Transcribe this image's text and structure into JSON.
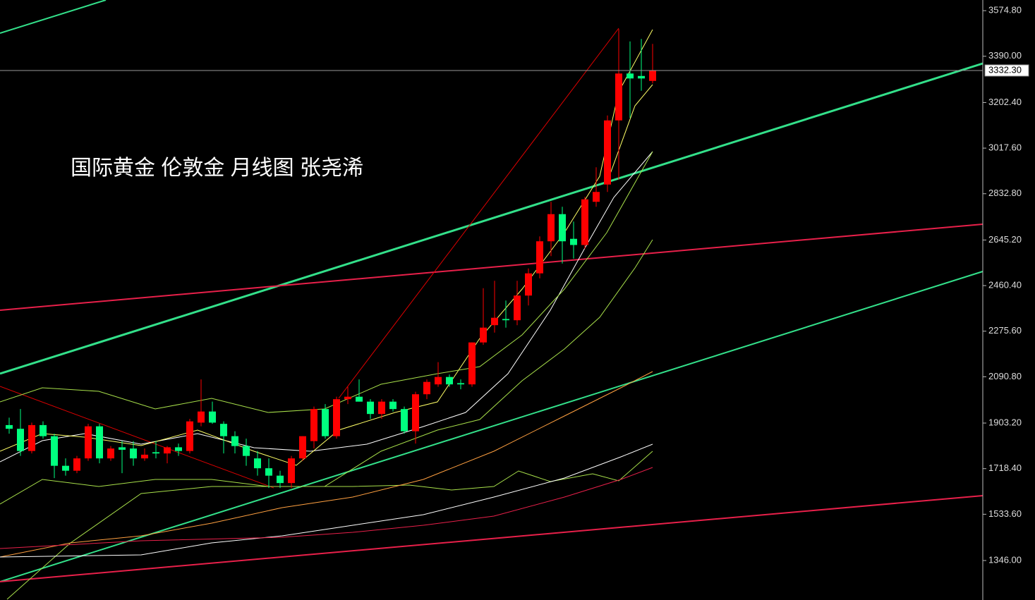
{
  "chart_data": {
    "type": "candlestick",
    "title": "国际黄金 伦敦金 月线图 张尧浠",
    "up_color": "#ff0000",
    "down_color": "#00ff7f",
    "open": [
      1895,
      1880,
      1790,
      1895,
      1850,
      1730,
      1710,
      1760,
      1890,
      1760,
      1805,
      1800,
      1760,
      1785,
      1780,
      1805,
      1790,
      1905,
      1950,
      1900,
      1850,
      1810,
      1760,
      1720,
      1690,
      1660,
      1760,
      1830,
      1960,
      1850,
      2000,
      2010,
      1990,
      1940,
      1990,
      1960,
      1870,
      2020,
      2060,
      2090,
      2065,
      2060,
      2230,
      2300,
      2325,
      2320,
      2420,
      2510,
      2640,
      2750,
      2650,
      2625,
      2800,
      2870,
      3130,
      3320,
      3310,
      3290
    ],
    "high": [
      1925,
      1960,
      1905,
      1910,
      1860,
      1760,
      1770,
      1900,
      1900,
      1810,
      1830,
      1830,
      1800,
      1830,
      1810,
      1820,
      1920,
      2080,
      1990,
      1910,
      1870,
      1840,
      1790,
      1760,
      1710,
      1770,
      1850,
      1970,
      1980,
      2010,
      2050,
      2080,
      2000,
      2000,
      2000,
      1970,
      2030,
      2080,
      2150,
      2100,
      2080,
      2230,
      2450,
      2480,
      2400,
      2480,
      2530,
      2660,
      2800,
      2780,
      2720,
      2820,
      2940,
      3150,
      3500,
      3450,
      3460,
      3440
    ],
    "low": [
      1860,
      1770,
      1780,
      1840,
      1680,
      1690,
      1700,
      1750,
      1740,
      1750,
      1700,
      1730,
      1750,
      1760,
      1740,
      1770,
      1780,
      1890,
      1900,
      1780,
      1780,
      1730,
      1690,
      1640,
      1640,
      1640,
      1750,
      1800,
      1840,
      1840,
      1980,
      1990,
      1920,
      1920,
      1950,
      1860,
      1820,
      2000,
      2050,
      2050,
      2040,
      2050,
      2220,
      2270,
      2290,
      2300,
      2380,
      2490,
      2580,
      2550,
      2570,
      2610,
      2780,
      2840,
      2890,
      3140,
      3250,
      3280
    ],
    "close": [
      1880,
      1790,
      1895,
      1850,
      1730,
      1710,
      1760,
      1890,
      1760,
      1800,
      1795,
      1760,
      1775,
      1780,
      1805,
      1790,
      1910,
      1950,
      1905,
      1850,
      1810,
      1770,
      1720,
      1690,
      1660,
      1760,
      1850,
      1960,
      1850,
      2000,
      2010,
      1990,
      1940,
      1990,
      1960,
      1870,
      2020,
      2070,
      2090,
      2060,
      2060,
      2230,
      2290,
      2330,
      2320,
      2420,
      2510,
      2640,
      2750,
      2640,
      2625,
      2810,
      2840,
      3130,
      3320,
      3300,
      3300,
      3332.3
    ],
    "current_price": {
      "value": 3332.3,
      "label": "3332.30"
    },
    "ylim": [
      1186,
      3618
    ],
    "yticks": [
      {
        "value": 3574.8,
        "label": "3574.80"
      },
      {
        "value": 3390,
        "label": "3390.00"
      },
      {
        "value": 3202.4,
        "label": "3202.40"
      },
      {
        "value": 3017.6,
        "label": "3017.60"
      },
      {
        "value": 2832.8,
        "label": "2832.80"
      },
      {
        "value": 2645.2,
        "label": "2645.20"
      },
      {
        "value": 2460.4,
        "label": "2460.40"
      },
      {
        "value": 2275.6,
        "label": "2275.60"
      },
      {
        "value": 2090.8,
        "label": "2090.80"
      },
      {
        "value": 1903.2,
        "label": "1903.20"
      },
      {
        "value": 1718.4,
        "label": "1718.40"
      },
      {
        "value": 1533.6,
        "label": "1533.60"
      },
      {
        "value": 1346,
        "label": "1346.00"
      }
    ]
  }
}
